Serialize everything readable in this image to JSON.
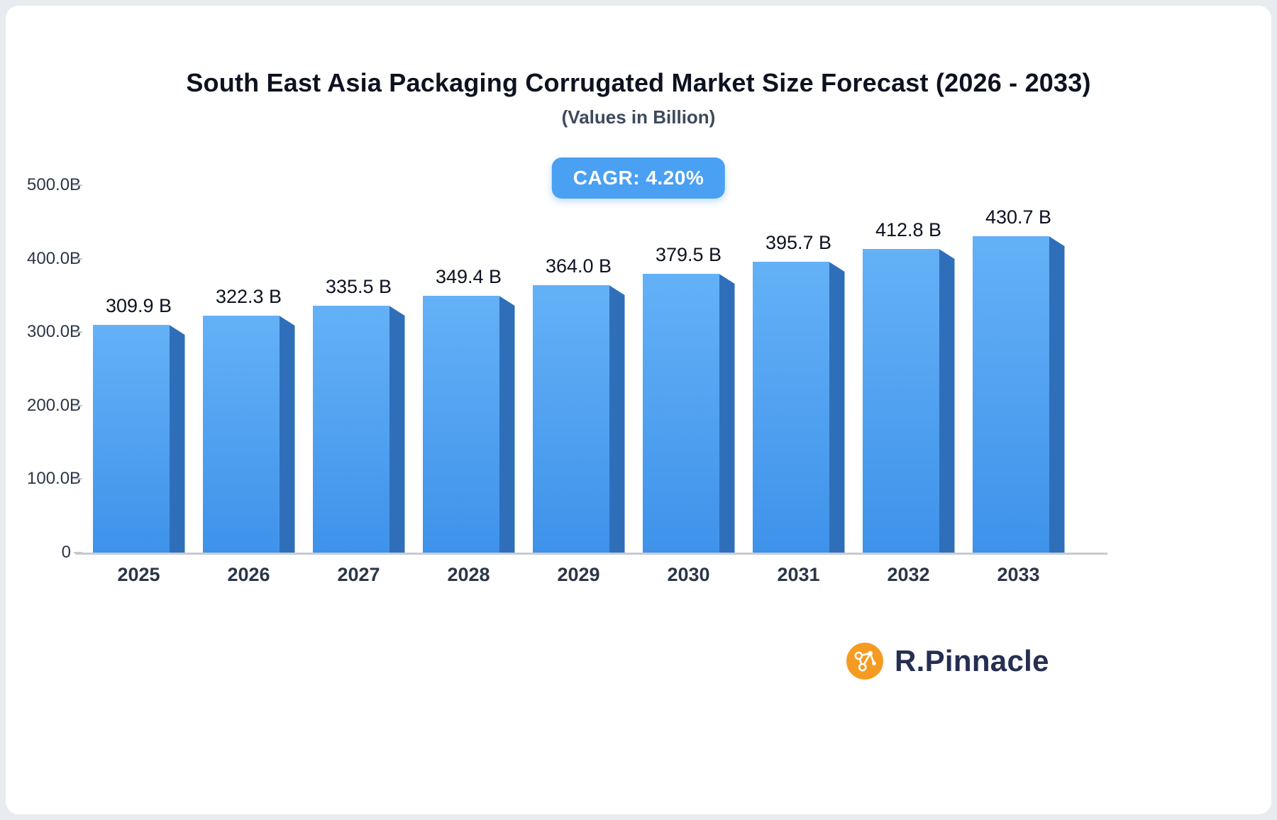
{
  "header": {
    "title": "South East Asia Packaging Corrugated Market Size Forecast (2026 - 2033)",
    "subtitle": "(Values in Billion)"
  },
  "badge": {
    "label": "CAGR: 4.20%",
    "bg_color": "#4aa0f2",
    "text_color": "#ffffff"
  },
  "logo": {
    "text": "R.Pinnacle",
    "icon": "network-molecule-icon",
    "icon_color": "#f59b22",
    "text_color": "#262e52"
  },
  "chart_data": {
    "type": "bar",
    "title": "South East Asia Packaging Corrugated Market Size Forecast (2026 - 2033)",
    "subtitle": "(Values in Billion)",
    "categories": [
      "2025",
      "2026",
      "2027",
      "2028",
      "2029",
      "2030",
      "2031",
      "2032",
      "2033"
    ],
    "values": [
      309.9,
      322.3,
      335.5,
      349.4,
      364.0,
      379.5,
      395.7,
      412.8,
      430.7
    ],
    "value_labels": [
      "309.9 B",
      "322.3 B",
      "335.5 B",
      "349.4 B",
      "364.0 B",
      "379.5 B",
      "395.7 B",
      "412.8 B",
      "430.7 B"
    ],
    "xlabel": "",
    "ylabel": "",
    "ylim": [
      0,
      500
    ],
    "yticks": [
      {
        "value": 0,
        "label": "0"
      },
      {
        "value": 100,
        "label": "100.0B"
      },
      {
        "value": 200,
        "label": "200.0B"
      },
      {
        "value": 300,
        "label": "300.0B"
      },
      {
        "value": 400,
        "label": "400.0B"
      },
      {
        "value": 500,
        "label": "500.0B"
      }
    ],
    "grid": false,
    "legend": false,
    "annotation": "CAGR: 4.20%",
    "bar_color_top": "#64b1f7",
    "bar_color_bottom": "#3e92ea",
    "bar_side_color": "#2f6fba",
    "axis_line_color": "#c6cbd2"
  }
}
